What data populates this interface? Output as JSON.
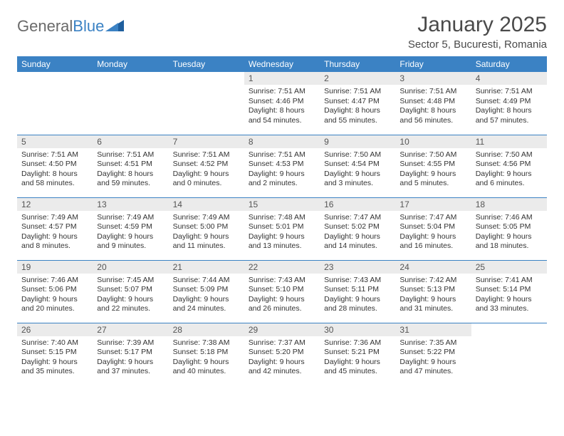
{
  "logo": {
    "part1": "General",
    "part2": "Blue"
  },
  "title": "January 2025",
  "subtitle": "Sector 5, Bucuresti, Romania",
  "colors": {
    "header_bg": "#3b82c4",
    "header_fg": "#ffffff",
    "daynum_bg": "#ebebeb",
    "row_divider": "#3b82c4",
    "page_bg": "#ffffff",
    "title_color": "#4a4a4a",
    "logo_gray": "#6a6a6a",
    "logo_blue": "#3b82c4"
  },
  "days_of_week": [
    "Sunday",
    "Monday",
    "Tuesday",
    "Wednesday",
    "Thursday",
    "Friday",
    "Saturday"
  ],
  "weeks": [
    [
      null,
      null,
      null,
      {
        "n": "1",
        "sunrise": "7:51 AM",
        "sunset": "4:46 PM",
        "dl_h": "8",
        "dl_m": "54"
      },
      {
        "n": "2",
        "sunrise": "7:51 AM",
        "sunset": "4:47 PM",
        "dl_h": "8",
        "dl_m": "55"
      },
      {
        "n": "3",
        "sunrise": "7:51 AM",
        "sunset": "4:48 PM",
        "dl_h": "8",
        "dl_m": "56"
      },
      {
        "n": "4",
        "sunrise": "7:51 AM",
        "sunset": "4:49 PM",
        "dl_h": "8",
        "dl_m": "57"
      }
    ],
    [
      {
        "n": "5",
        "sunrise": "7:51 AM",
        "sunset": "4:50 PM",
        "dl_h": "8",
        "dl_m": "58"
      },
      {
        "n": "6",
        "sunrise": "7:51 AM",
        "sunset": "4:51 PM",
        "dl_h": "8",
        "dl_m": "59"
      },
      {
        "n": "7",
        "sunrise": "7:51 AM",
        "sunset": "4:52 PM",
        "dl_h": "9",
        "dl_m": "0"
      },
      {
        "n": "8",
        "sunrise": "7:51 AM",
        "sunset": "4:53 PM",
        "dl_h": "9",
        "dl_m": "2"
      },
      {
        "n": "9",
        "sunrise": "7:50 AM",
        "sunset": "4:54 PM",
        "dl_h": "9",
        "dl_m": "3"
      },
      {
        "n": "10",
        "sunrise": "7:50 AM",
        "sunset": "4:55 PM",
        "dl_h": "9",
        "dl_m": "5"
      },
      {
        "n": "11",
        "sunrise": "7:50 AM",
        "sunset": "4:56 PM",
        "dl_h": "9",
        "dl_m": "6"
      }
    ],
    [
      {
        "n": "12",
        "sunrise": "7:49 AM",
        "sunset": "4:57 PM",
        "dl_h": "9",
        "dl_m": "8"
      },
      {
        "n": "13",
        "sunrise": "7:49 AM",
        "sunset": "4:59 PM",
        "dl_h": "9",
        "dl_m": "9"
      },
      {
        "n": "14",
        "sunrise": "7:49 AM",
        "sunset": "5:00 PM",
        "dl_h": "9",
        "dl_m": "11"
      },
      {
        "n": "15",
        "sunrise": "7:48 AM",
        "sunset": "5:01 PM",
        "dl_h": "9",
        "dl_m": "13"
      },
      {
        "n": "16",
        "sunrise": "7:47 AM",
        "sunset": "5:02 PM",
        "dl_h": "9",
        "dl_m": "14"
      },
      {
        "n": "17",
        "sunrise": "7:47 AM",
        "sunset": "5:04 PM",
        "dl_h": "9",
        "dl_m": "16"
      },
      {
        "n": "18",
        "sunrise": "7:46 AM",
        "sunset": "5:05 PM",
        "dl_h": "9",
        "dl_m": "18"
      }
    ],
    [
      {
        "n": "19",
        "sunrise": "7:46 AM",
        "sunset": "5:06 PM",
        "dl_h": "9",
        "dl_m": "20"
      },
      {
        "n": "20",
        "sunrise": "7:45 AM",
        "sunset": "5:07 PM",
        "dl_h": "9",
        "dl_m": "22"
      },
      {
        "n": "21",
        "sunrise": "7:44 AM",
        "sunset": "5:09 PM",
        "dl_h": "9",
        "dl_m": "24"
      },
      {
        "n": "22",
        "sunrise": "7:43 AM",
        "sunset": "5:10 PM",
        "dl_h": "9",
        "dl_m": "26"
      },
      {
        "n": "23",
        "sunrise": "7:43 AM",
        "sunset": "5:11 PM",
        "dl_h": "9",
        "dl_m": "28"
      },
      {
        "n": "24",
        "sunrise": "7:42 AM",
        "sunset": "5:13 PM",
        "dl_h": "9",
        "dl_m": "31"
      },
      {
        "n": "25",
        "sunrise": "7:41 AM",
        "sunset": "5:14 PM",
        "dl_h": "9",
        "dl_m": "33"
      }
    ],
    [
      {
        "n": "26",
        "sunrise": "7:40 AM",
        "sunset": "5:15 PM",
        "dl_h": "9",
        "dl_m": "35"
      },
      {
        "n": "27",
        "sunrise": "7:39 AM",
        "sunset": "5:17 PM",
        "dl_h": "9",
        "dl_m": "37"
      },
      {
        "n": "28",
        "sunrise": "7:38 AM",
        "sunset": "5:18 PM",
        "dl_h": "9",
        "dl_m": "40"
      },
      {
        "n": "29",
        "sunrise": "7:37 AM",
        "sunset": "5:20 PM",
        "dl_h": "9",
        "dl_m": "42"
      },
      {
        "n": "30",
        "sunrise": "7:36 AM",
        "sunset": "5:21 PM",
        "dl_h": "9",
        "dl_m": "45"
      },
      {
        "n": "31",
        "sunrise": "7:35 AM",
        "sunset": "5:22 PM",
        "dl_h": "9",
        "dl_m": "47"
      },
      null
    ]
  ]
}
